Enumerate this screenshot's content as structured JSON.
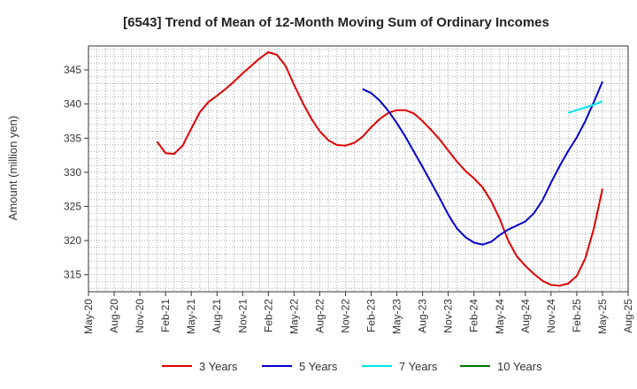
{
  "chart_data": {
    "type": "line",
    "title": "[6543]  Trend of Mean of 12-Month Moving Sum of Ordinary Incomes",
    "xlabel": "",
    "ylabel": "Amount (million yen)",
    "ylim": [
      312.5,
      348.5
    ],
    "y_ticks": [
      315,
      320,
      325,
      330,
      335,
      340,
      345
    ],
    "x_ticks": [
      "May-20",
      "Aug-20",
      "Nov-20",
      "Feb-21",
      "May-21",
      "Aug-21",
      "Nov-21",
      "Feb-22",
      "May-22",
      "Aug-22",
      "Nov-22",
      "Feb-23",
      "May-23",
      "Aug-23",
      "Nov-23",
      "Feb-24",
      "May-24",
      "Aug-24",
      "Nov-24",
      "Feb-25",
      "May-25",
      "Aug-25"
    ],
    "grid": true,
    "legend_position": "bottom",
    "series": [
      {
        "name": "3 Years",
        "color": "#dd0000",
        "start_month_index": 8,
        "values": [
          334.5,
          332.8,
          332.7,
          333.9,
          336.4,
          338.8,
          340.3,
          341.2,
          342.2,
          343.3,
          344.5,
          345.6,
          346.7,
          347.6,
          347.2,
          345.6,
          342.8,
          340.2,
          337.9,
          336.0,
          334.7,
          334.0,
          333.9,
          334.3,
          335.2,
          336.6,
          337.8,
          338.7,
          339.1,
          339.1,
          338.6,
          337.5,
          336.2,
          334.8,
          333.2,
          331.6,
          330.2,
          329.1,
          327.8,
          325.8,
          323.2,
          320.0,
          317.7,
          316.3,
          315.1,
          314.1,
          313.5,
          313.4,
          313.7,
          314.8,
          317.4,
          321.8,
          327.6
        ]
      },
      {
        "name": "5 Years",
        "color": "#0000cc",
        "start_month_index": 32,
        "values": [
          342.2,
          341.6,
          340.5,
          339.0,
          337.2,
          335.2,
          333.0,
          330.8,
          328.5,
          326.2,
          323.8,
          321.8,
          320.5,
          319.7,
          319.4,
          319.8,
          320.8,
          321.6,
          322.2,
          322.8,
          324.0,
          325.9,
          328.5,
          330.9,
          333.1,
          335.1,
          337.5,
          340.3,
          343.3
        ]
      },
      {
        "name": "7 Years",
        "color": "#00e5ee",
        "start_month_index": 56,
        "values": [
          338.7,
          339.1,
          339.5,
          339.9,
          340.4
        ]
      },
      {
        "name": "10 Years",
        "color": "#007700",
        "start_month_index": 0,
        "values": []
      }
    ]
  }
}
